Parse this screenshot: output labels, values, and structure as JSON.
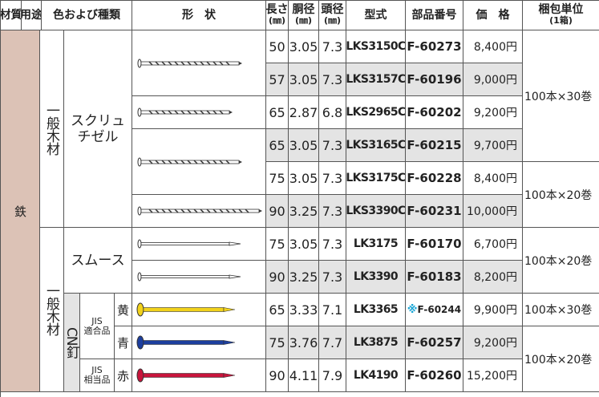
{
  "header": {
    "columns": [
      [
        "材質"
      ],
      [
        "用途"
      ],
      [
        "色および種類"
      ],
      [
        "形　状"
      ],
      [
        "長さ",
        "(㎜)"
      ],
      [
        "胴径",
        "(㎜)"
      ],
      [
        "頭径",
        "(㎜)"
      ],
      [
        "型式"
      ],
      [
        "部品番号"
      ],
      [
        "価　格"
      ],
      [
        "梱包単位",
        "(1箱)"
      ]
    ]
  },
  "material": "鉄",
  "groups": [
    {
      "usage": "一般木材",
      "rows": [
        {
          "type": "スクリュ\nチゼル",
          "pack": "100本×30巻",
          "length": "50",
          "shaft": "3.05",
          "head": "7.3",
          "model": "LKS3150C",
          "part": "F-60273",
          "price": "8,400円"
        },
        {
          "length": "57",
          "shaft": "3.05",
          "head": "7.3",
          "model": "LKS3157C",
          "part": "F-60196",
          "price": "9,000円"
        },
        {
          "length": "65",
          "shaft": "2.87",
          "head": "6.8",
          "model": "LKS2965C",
          "part": "F-60202",
          "price": "9,200円"
        },
        {
          "length": "65",
          "shaft": "3.05",
          "head": "7.3",
          "model": "LKS3165C",
          "part": "F-60215",
          "price": "9,700円"
        },
        {
          "pack": "100本×20巻",
          "length": "75",
          "shaft": "3.05",
          "head": "7.3",
          "model": "LKS3175C",
          "part": "F-60228",
          "price": "8,400円"
        },
        {
          "length": "90",
          "shaft": "3.25",
          "head": "7.3",
          "model": "LKS3390C",
          "part": "F-60231",
          "price": "10,000円"
        }
      ]
    },
    {
      "usage": "一般木材",
      "rows": [
        {
          "type": "スムース",
          "pack": "100本×20巻",
          "length": "75",
          "shaft": "3.05",
          "head": "7.3",
          "model": "LK3175",
          "part": "F-60170",
          "price": "6,700円"
        },
        {
          "length": "90",
          "shaft": "3.25",
          "head": "7.3",
          "model": "LK3390",
          "part": "F-60183",
          "price": "8,200円"
        },
        {
          "type": "CN釘",
          "grade": "JIS\n適合品",
          "color": "黄",
          "pack": "100本×30巻",
          "length": "65",
          "shaft": "3.33",
          "head": "7.1",
          "model": "LK3365",
          "part_note": "※",
          "part": "F-60244",
          "price": "9,900円"
        },
        {
          "color": "青",
          "pack": "100本×20巻",
          "length": "75",
          "shaft": "3.76",
          "head": "7.7",
          "model": "LK3875",
          "part": "F-60257",
          "price": "9,200円"
        },
        {
          "grade": "JIS\n相当品",
          "color": "赤",
          "length": "90",
          "shaft": "4.11",
          "head": "7.9",
          "model": "LK4190",
          "part": "F-60260",
          "price": "15,200円"
        }
      ]
    }
  ]
}
